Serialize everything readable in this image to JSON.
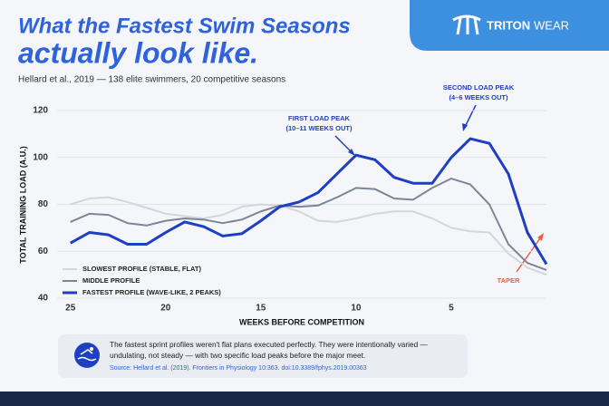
{
  "chart_data": {
    "type": "line",
    "title": [
      "What the Fastest Swim Seasons",
      "actually look like."
    ],
    "subtitle": "Hellard et al., 2019 — 138 elite swimmers, 20 competitive seasons",
    "brand": [
      "TRITON",
      "WEAR"
    ],
    "x_label": "WEEKS BEFORE COMPETITION",
    "y_label": "TOTAL TRAINING LOAD (A.U.)",
    "annotations": [
      {
        "lines": [
          "FIRST LOAD PEAK",
          "(10–11 WEEKS OUT)"
        ]
      },
      {
        "lines": [
          "SECOND LOAD PEAK",
          "(4–6 WEEKS OUT)"
        ]
      },
      {
        "lines": [
          "TAPER"
        ]
      }
    ],
    "note": [
      "The fastest sprint profiles weren't flat plans executed perfectly. They were intentionally varied —",
      "undulating, not steady — with two specific load peaks before the major meet."
    ],
    "source": "Source: Hellard et al. (2019). Frontiers in Physiology 10:363. doi:10.3389/fphys.2019.00363",
    "x": [
      25,
      24,
      23,
      22,
      21,
      20,
      19,
      18,
      17,
      16,
      15,
      14,
      13,
      12,
      11,
      10,
      9,
      8,
      7,
      6,
      5,
      4,
      3,
      2,
      1,
      0
    ],
    "series": [
      {
        "name": "SLOWEST PROFILE (STABLE, FLAT)",
        "color": "#d3d6dc",
        "width": 2,
        "values": [
          80,
          82.5,
          83,
          81,
          78.5,
          76,
          75,
          74,
          75.5,
          79,
          80,
          79.5,
          77,
          73,
          72.5,
          74,
          76,
          77,
          77,
          74,
          70,
          68.5,
          68,
          59,
          53,
          50
        ]
      },
      {
        "name": "MIDDLE PROFILE",
        "color": "#7c8698",
        "width": 2,
        "values": [
          72.5,
          76,
          75.5,
          72,
          71,
          73,
          74,
          73.5,
          72,
          73.5,
          77,
          79.5,
          79,
          79.5,
          83,
          87,
          86.5,
          82.5,
          82,
          87,
          91,
          88.5,
          80,
          63,
          55,
          52
        ]
      },
      {
        "name": "FASTEST PROFILE (WAVE-LIKE, 2 PEAKS)",
        "color": "#1f3fc2",
        "width": 3,
        "values": [
          63.5,
          68,
          67,
          63,
          63,
          68,
          72.5,
          70.5,
          66.5,
          67.5,
          73,
          79,
          81,
          85,
          93,
          101,
          99,
          91.5,
          89,
          89,
          100,
          108,
          106,
          93,
          68,
          54.5
        ]
      }
    ],
    "xlim": [
      25.7,
      0
    ],
    "ylim": [
      40,
      120
    ],
    "xticks": [
      25,
      20,
      15,
      10,
      5
    ],
    "yticks": [
      40,
      60,
      80,
      100,
      120
    ],
    "grid": true,
    "legend": "lower left"
  }
}
